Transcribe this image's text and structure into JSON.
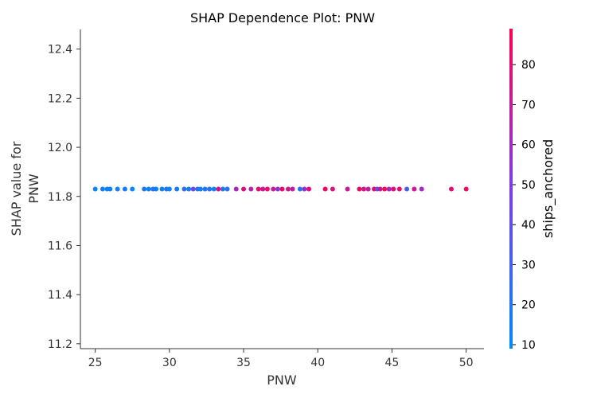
{
  "chart_data": {
    "type": "scatter",
    "title": "SHAP Dependence Plot: PNW",
    "xlabel": "PNW",
    "ylabel_lines": [
      "SHAP value for",
      "PNW"
    ],
    "xlim": [
      24,
      51.2
    ],
    "ylim": [
      11.18,
      12.48
    ],
    "xticks": [
      25,
      30,
      35,
      40,
      45,
      50
    ],
    "yticks": [
      11.2,
      11.4,
      11.6,
      11.8,
      12.0,
      12.2,
      12.4
    ],
    "ytick_labels": [
      "11.2",
      "11.4",
      "11.6",
      "11.8",
      "12.0",
      "12.2",
      "12.4"
    ],
    "grid": false,
    "colorbar": {
      "label": "ships_anchored",
      "range": [
        9,
        89
      ],
      "ticks": [
        10,
        20,
        30,
        40,
        50,
        60,
        70,
        80
      ],
      "color_low": "#008afb",
      "color_mid": "#7c3ee6",
      "color_high": "#ff0052"
    },
    "y_value": 11.83,
    "points": [
      {
        "x": 25.0,
        "c": 12
      },
      {
        "x": 25.5,
        "c": 14
      },
      {
        "x": 25.8,
        "c": 16
      },
      {
        "x": 26.0,
        "c": 13
      },
      {
        "x": 26.5,
        "c": 15
      },
      {
        "x": 27.0,
        "c": 17
      },
      {
        "x": 27.5,
        "c": 12
      },
      {
        "x": 28.3,
        "c": 18
      },
      {
        "x": 28.6,
        "c": 14
      },
      {
        "x": 28.9,
        "c": 20
      },
      {
        "x": 29.1,
        "c": 16
      },
      {
        "x": 29.5,
        "c": 13
      },
      {
        "x": 29.8,
        "c": 19
      },
      {
        "x": 30.0,
        "c": 15
      },
      {
        "x": 30.5,
        "c": 17
      },
      {
        "x": 31.0,
        "c": 22
      },
      {
        "x": 31.3,
        "c": 18
      },
      {
        "x": 31.6,
        "c": 42
      },
      {
        "x": 31.9,
        "c": 20
      },
      {
        "x": 32.1,
        "c": 16
      },
      {
        "x": 32.4,
        "c": 19
      },
      {
        "x": 32.7,
        "c": 21
      },
      {
        "x": 33.0,
        "c": 17
      },
      {
        "x": 33.3,
        "c": 75
      },
      {
        "x": 33.6,
        "c": 18
      },
      {
        "x": 33.9,
        "c": 22
      },
      {
        "x": 34.5,
        "c": 62
      },
      {
        "x": 35.0,
        "c": 78
      },
      {
        "x": 35.5,
        "c": 66
      },
      {
        "x": 36.0,
        "c": 80
      },
      {
        "x": 36.3,
        "c": 72
      },
      {
        "x": 36.6,
        "c": 84
      },
      {
        "x": 37.0,
        "c": 70
      },
      {
        "x": 37.3,
        "c": 55
      },
      {
        "x": 37.6,
        "c": 82
      },
      {
        "x": 38.0,
        "c": 74
      },
      {
        "x": 38.3,
        "c": 68
      },
      {
        "x": 38.8,
        "c": 22
      },
      {
        "x": 39.1,
        "c": 58
      },
      {
        "x": 39.4,
        "c": 79
      },
      {
        "x": 40.5,
        "c": 85
      },
      {
        "x": 41.0,
        "c": 77
      },
      {
        "x": 42.0,
        "c": 71
      },
      {
        "x": 42.8,
        "c": 83
      },
      {
        "x": 43.1,
        "c": 76
      },
      {
        "x": 43.4,
        "c": 69
      },
      {
        "x": 43.8,
        "c": 81
      },
      {
        "x": 44.0,
        "c": 40
      },
      {
        "x": 44.2,
        "c": 73
      },
      {
        "x": 44.5,
        "c": 86
      },
      {
        "x": 44.8,
        "c": 64
      },
      {
        "x": 45.1,
        "c": 78
      },
      {
        "x": 45.5,
        "c": 82
      },
      {
        "x": 46.0,
        "c": 30
      },
      {
        "x": 46.5,
        "c": 72
      },
      {
        "x": 47.0,
        "c": 60
      },
      {
        "x": 49.0,
        "c": 80
      },
      {
        "x": 50.0,
        "c": 84
      }
    ]
  }
}
